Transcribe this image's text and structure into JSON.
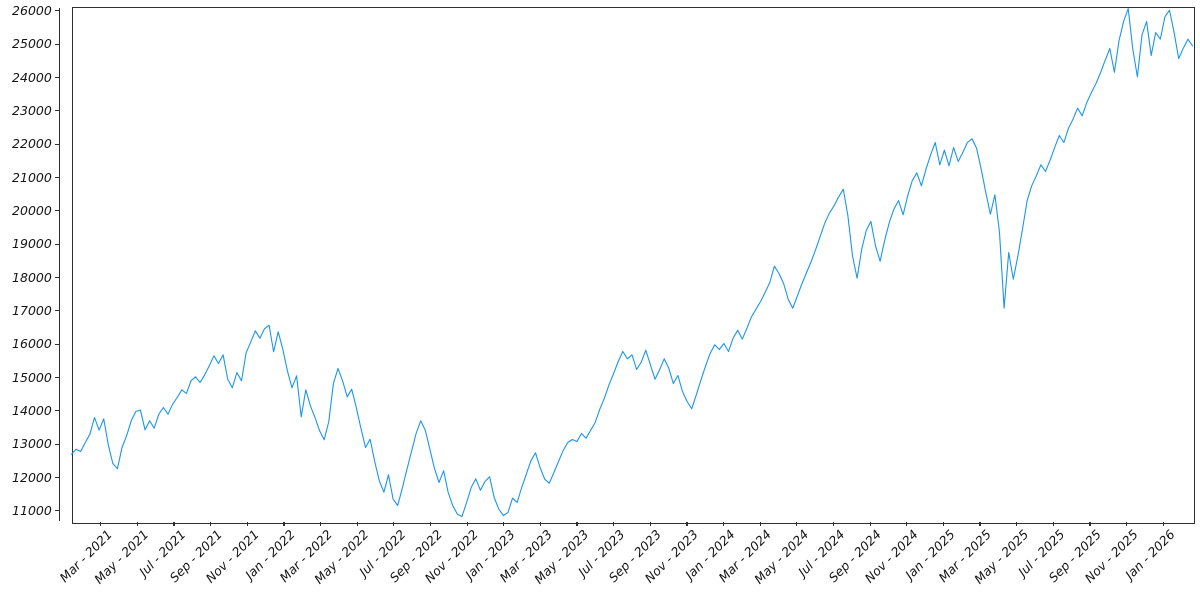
{
  "chart_data": {
    "type": "line",
    "title": "",
    "xlabel": "",
    "ylabel": "",
    "grid": false,
    "legend": null,
    "line_color": "#1C96E8",
    "axis_color": "#2f2f2f",
    "tick_label_color": "#151515",
    "background_color": "#ffffff",
    "y_ticks": [
      11000,
      12000,
      13000,
      14000,
      15000,
      16000,
      17000,
      18000,
      19000,
      20000,
      21000,
      22000,
      23000,
      24000,
      25000,
      26000
    ],
    "ylim": [
      10680,
      26130
    ],
    "x_tick_labels": [
      "Mar - 2021",
      "May - 2021",
      "Jul - 2021",
      "Sep - 2021",
      "Nov - 2021",
      "Jan - 2022",
      "Mar - 2022",
      "May - 2022",
      "Jul - 2022",
      "Sep - 2022",
      "Nov - 2022",
      "Jan - 2023",
      "Mar - 2023",
      "May - 2023",
      "Jul - 2023",
      "Sep - 2023",
      "Nov - 2023",
      "Jan - 2024",
      "Mar - 2024",
      "May - 2024",
      "Jul - 2024",
      "Sep - 2024",
      "Nov - 2024",
      "Jan - 2025",
      "Mar - 2025",
      "May - 2025",
      "Jul - 2025",
      "Sep - 2025",
      "Nov - 2025",
      "Jan - 2026"
    ],
    "x_tick_month_step": 2,
    "x_months_span": [
      -1.6,
      59.6
    ],
    "series": [
      {
        "name": "index-price-line",
        "values": [
          12700,
          12850,
          12780,
          13050,
          13300,
          13800,
          13420,
          13760,
          12980,
          12420,
          12260,
          12900,
          13250,
          13700,
          13980,
          14025,
          13430,
          13700,
          13480,
          13900,
          14100,
          13900,
          14200,
          14400,
          14630,
          14520,
          14900,
          15020,
          14850,
          15080,
          15350,
          15650,
          15420,
          15680,
          14950,
          14690,
          15150,
          14900,
          15740,
          16060,
          16400,
          16180,
          16460,
          16570,
          15770,
          16370,
          15850,
          15200,
          14690,
          15050,
          13820,
          14630,
          14150,
          13800,
          13400,
          13130,
          13680,
          14820,
          15270,
          14900,
          14420,
          14650,
          14100,
          13480,
          12900,
          13150,
          12480,
          11900,
          11560,
          12080,
          11350,
          11160,
          11680,
          12240,
          12780,
          13320,
          13700,
          13420,
          12850,
          12280,
          11850,
          12200,
          11550,
          11150,
          10900,
          10830,
          11250,
          11700,
          11960,
          11620,
          11880,
          12020,
          11400,
          11050,
          10860,
          10950,
          11380,
          11250,
          11700,
          12100,
          12500,
          12740,
          12300,
          11950,
          11830,
          12150,
          12480,
          12800,
          13050,
          13140,
          13080,
          13320,
          13180,
          13420,
          13650,
          14050,
          14380,
          14780,
          15120,
          15480,
          15780,
          15560,
          15680,
          15240,
          15460,
          15820,
          15380,
          14950,
          15230,
          15560,
          15280,
          14820,
          15060,
          14580,
          14280,
          14060,
          14480,
          14920,
          15340,
          15720,
          15980,
          15840,
          16020,
          15780,
          16180,
          16420,
          16150,
          16480,
          16820,
          17050,
          17280,
          17560,
          17850,
          18340,
          18120,
          17820,
          17350,
          17080,
          17450,
          17820,
          18150,
          18480,
          18850,
          19250,
          19650,
          19940,
          20150,
          20420,
          20650,
          19850,
          18650,
          17980,
          18850,
          19420,
          19680,
          18950,
          18490,
          19120,
          19650,
          20050,
          20310,
          19880,
          20450,
          20900,
          21140,
          20750,
          21250,
          21680,
          22050,
          21380,
          21820,
          21350,
          21900,
          21480,
          21750,
          22050,
          22160,
          21880,
          21250,
          20550,
          19900,
          20480,
          19350,
          17080,
          18750,
          17950,
          18650,
          19450,
          20300,
          20750,
          21050,
          21380,
          21180,
          21520,
          21900,
          22260,
          22050,
          22480,
          22750,
          23080,
          22850,
          23250,
          23550,
          23820,
          24150,
          24520,
          24870,
          24160,
          25100,
          25680,
          26070,
          24850,
          24020,
          25280,
          25680,
          24660,
          25350,
          25150,
          25820,
          26020,
          25350,
          24570,
          24880,
          25150,
          24950
        ]
      }
    ]
  }
}
